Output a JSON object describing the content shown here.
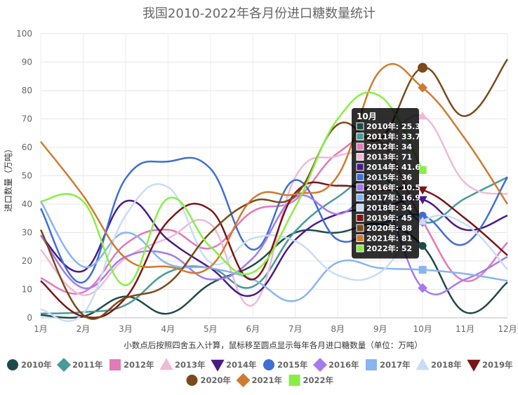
{
  "chart_data": {
    "type": "line",
    "title": "我国2010-2022年各月份进口糖数量统计",
    "ylabel": "进口数量（万吨）",
    "xlabel": "小数点后按照四舍五入计算，鼠标移至圆点显示每年各月进口糖数量（单位：万吨）",
    "ylim": [
      0,
      100
    ],
    "yticks": [
      0,
      10,
      20,
      30,
      40,
      50,
      60,
      70,
      80,
      90,
      100
    ],
    "grid": true,
    "legend_position": "bottom",
    "categories": [
      "1月",
      "2月",
      "3月",
      "4月",
      "5月",
      "6月",
      "7月",
      "8月",
      "9月",
      "10月",
      "11月",
      "12月"
    ],
    "series": [
      {
        "name": "2010年",
        "color": "#1f4a4a",
        "marker": "circle",
        "values": [
          1,
          0.5,
          7.5,
          1.5,
          12,
          18.5,
          30,
          30,
          33,
          25.3,
          2,
          12.5
        ]
      },
      {
        "name": "2011年",
        "color": "#4a9a98",
        "marker": "diamond",
        "values": [
          1.5,
          2,
          4.5,
          16,
          17.5,
          11,
          30.5,
          42.5,
          50,
          33.7,
          42,
          49.5
        ]
      },
      {
        "name": "2012年",
        "color": "#e07ab8",
        "marker": "square",
        "values": [
          14,
          9,
          26,
          31,
          24.5,
          37.5,
          41.5,
          58,
          62,
          34,
          13,
          26.5
        ]
      },
      {
        "name": "2013年",
        "color": "#eebad8",
        "marker": "triangle",
        "values": [
          24,
          8,
          21,
          28,
          33,
          4.5,
          49.5,
          57,
          60,
          71,
          47.5,
          43.5
        ]
      },
      {
        "name": "2014年",
        "color": "#4a1a88",
        "marker": "triangle-down",
        "values": [
          29,
          16.5,
          41,
          27.5,
          17.5,
          8,
          27.5,
          36.5,
          38.5,
          41.6,
          31,
          36
        ]
      },
      {
        "name": "2015年",
        "color": "#3f6fd0",
        "marker": "circle",
        "values": [
          38.5,
          12.5,
          49,
          55,
          52.5,
          24,
          48.5,
          27.5,
          33,
          36,
          26,
          49.5
        ]
      },
      {
        "name": "2016年",
        "color": "#a57aee",
        "marker": "diamond",
        "values": [
          29,
          10.5,
          21.5,
          22.5,
          13.5,
          21,
          42.5,
          36.5,
          42,
          10.5,
          13.5,
          21.5
        ]
      },
      {
        "name": "2017年",
        "color": "#88b4f0",
        "marker": "square",
        "values": [
          41,
          18,
          30,
          19,
          17.5,
          13.5,
          6,
          19.5,
          17.5,
          16.9,
          15.5,
          13
        ]
      },
      {
        "name": "2018年",
        "color": "#c8ddf5",
        "marker": "triangle",
        "values": [
          3,
          1.5,
          36,
          46,
          19.5,
          28,
          27,
          15,
          16,
          34,
          33,
          17
        ]
      },
      {
        "name": "2019年",
        "color": "#7a1515",
        "marker": "triangle-down",
        "values": [
          13,
          0.5,
          7,
          34,
          38,
          13.5,
          44,
          46.5,
          45,
          45,
          35,
          22
        ]
      },
      {
        "name": "2020年",
        "color": "#7a4a1a",
        "marker": "circle",
        "values": [
          31,
          1,
          7,
          12,
          30,
          41,
          43,
          68,
          63,
          88,
          71,
          91
        ]
      },
      {
        "name": "2021年",
        "color": "#d07a30",
        "marker": "diamond",
        "values": [
          62,
          43,
          21,
          18,
          18,
          42,
          43.5,
          50,
          87,
          81,
          63,
          40
        ]
      },
      {
        "name": "2022年",
        "color": "#88ee44",
        "marker": "square",
        "values": [
          41,
          41,
          11.5,
          42,
          25,
          16,
          39,
          70,
          78,
          52,
          null,
          null
        ]
      }
    ],
    "highlight_category": "10月"
  },
  "tooltip": {
    "title": "10月",
    "entries": [
      "2010年: 25.3",
      "2011年: 33.7",
      "2012年: 34",
      "2013年: 71",
      "2014年: 41.6",
      "2015年: 36",
      "2016年: 10.5",
      "2017年: 16.9",
      "2018年: 34",
      "2019年: 45",
      "2020年: 88",
      "2021年: 81",
      "2022年: 52"
    ]
  }
}
